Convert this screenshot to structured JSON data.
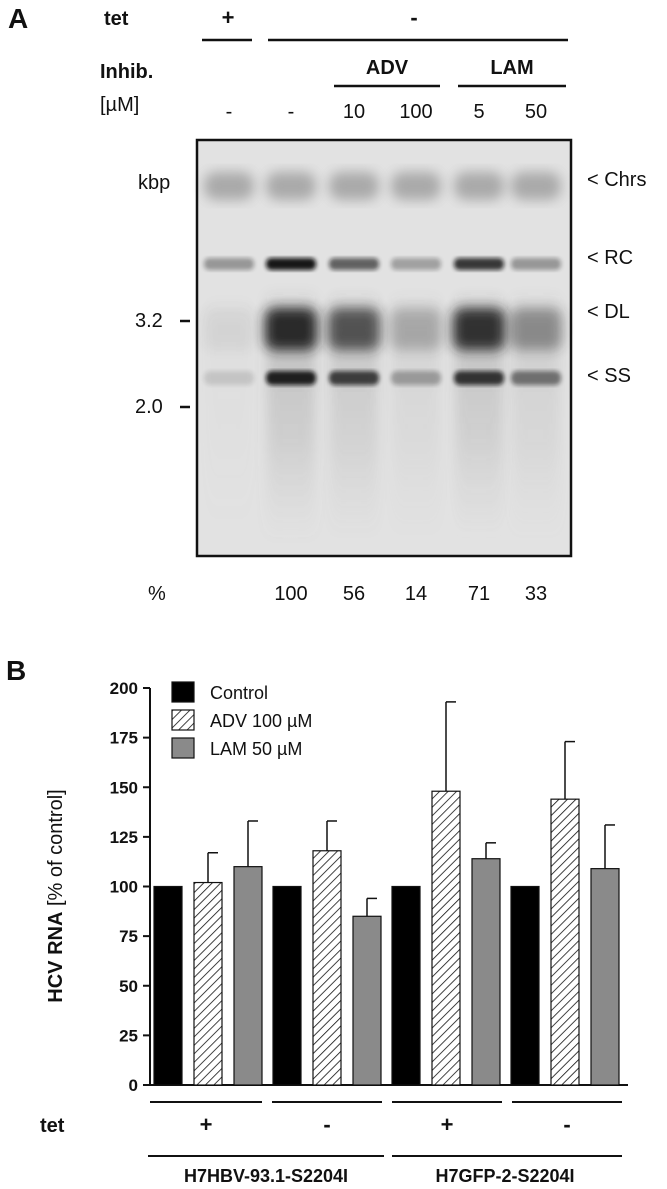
{
  "panel_a": {
    "letter": "A",
    "tet_label": "tet",
    "tet_plus": "+",
    "tet_minus": "-",
    "inhib_label": "Inhib.",
    "adv_label": "ADV",
    "lam_label": "LAM",
    "conc_label": "[µM]",
    "conc_values": [
      "-",
      "-",
      "10",
      "100",
      "5",
      "50"
    ],
    "kbp_label": "kbp",
    "marker_labels": [
      "3.2",
      "2.0"
    ],
    "band_labels": [
      "< Chrs",
      "< RC",
      "< DL",
      "< SS"
    ],
    "percent_label": "%",
    "percent_values": [
      "",
      "100",
      "56",
      "14",
      "71",
      "33"
    ]
  },
  "panel_b": {
    "letter": "B",
    "tet_label": "tet",
    "tet_values": [
      "+",
      "-",
      "+",
      "-"
    ],
    "cell_lines": [
      "H7HBV-93.1-S2204I",
      "H7GFP-2-S2204I"
    ]
  },
  "chart_data": {
    "type": "bar",
    "ylabel_bold": "HCV RNA",
    "ylabel_rest": " [% of control]",
    "ylim": [
      0,
      200
    ],
    "yticks": [
      0,
      25,
      50,
      75,
      100,
      125,
      150,
      175,
      200
    ],
    "legend_placement": "top-left",
    "groups": [
      "H7HBV-93.1-S2204I +",
      "H7HBV-93.1-S2204I -",
      "H7GFP-2-S2204I +",
      "H7GFP-2-S2204I -"
    ],
    "series": [
      {
        "name": "Control",
        "values": [
          100,
          100,
          100,
          100
        ],
        "errors": [
          0,
          0,
          0,
          0
        ],
        "color": "#000000",
        "pattern": "solid"
      },
      {
        "name": "ADV 100 µM",
        "values": [
          102,
          118,
          148,
          144
        ],
        "errors": [
          15,
          15,
          45,
          29
        ],
        "color": "#ffffff",
        "pattern": "hatch"
      },
      {
        "name": "LAM 50 µM",
        "values": [
          110,
          85,
          114,
          109
        ],
        "errors": [
          23,
          9,
          8,
          22
        ],
        "color": "#8a8a8a",
        "pattern": "solid"
      }
    ]
  }
}
